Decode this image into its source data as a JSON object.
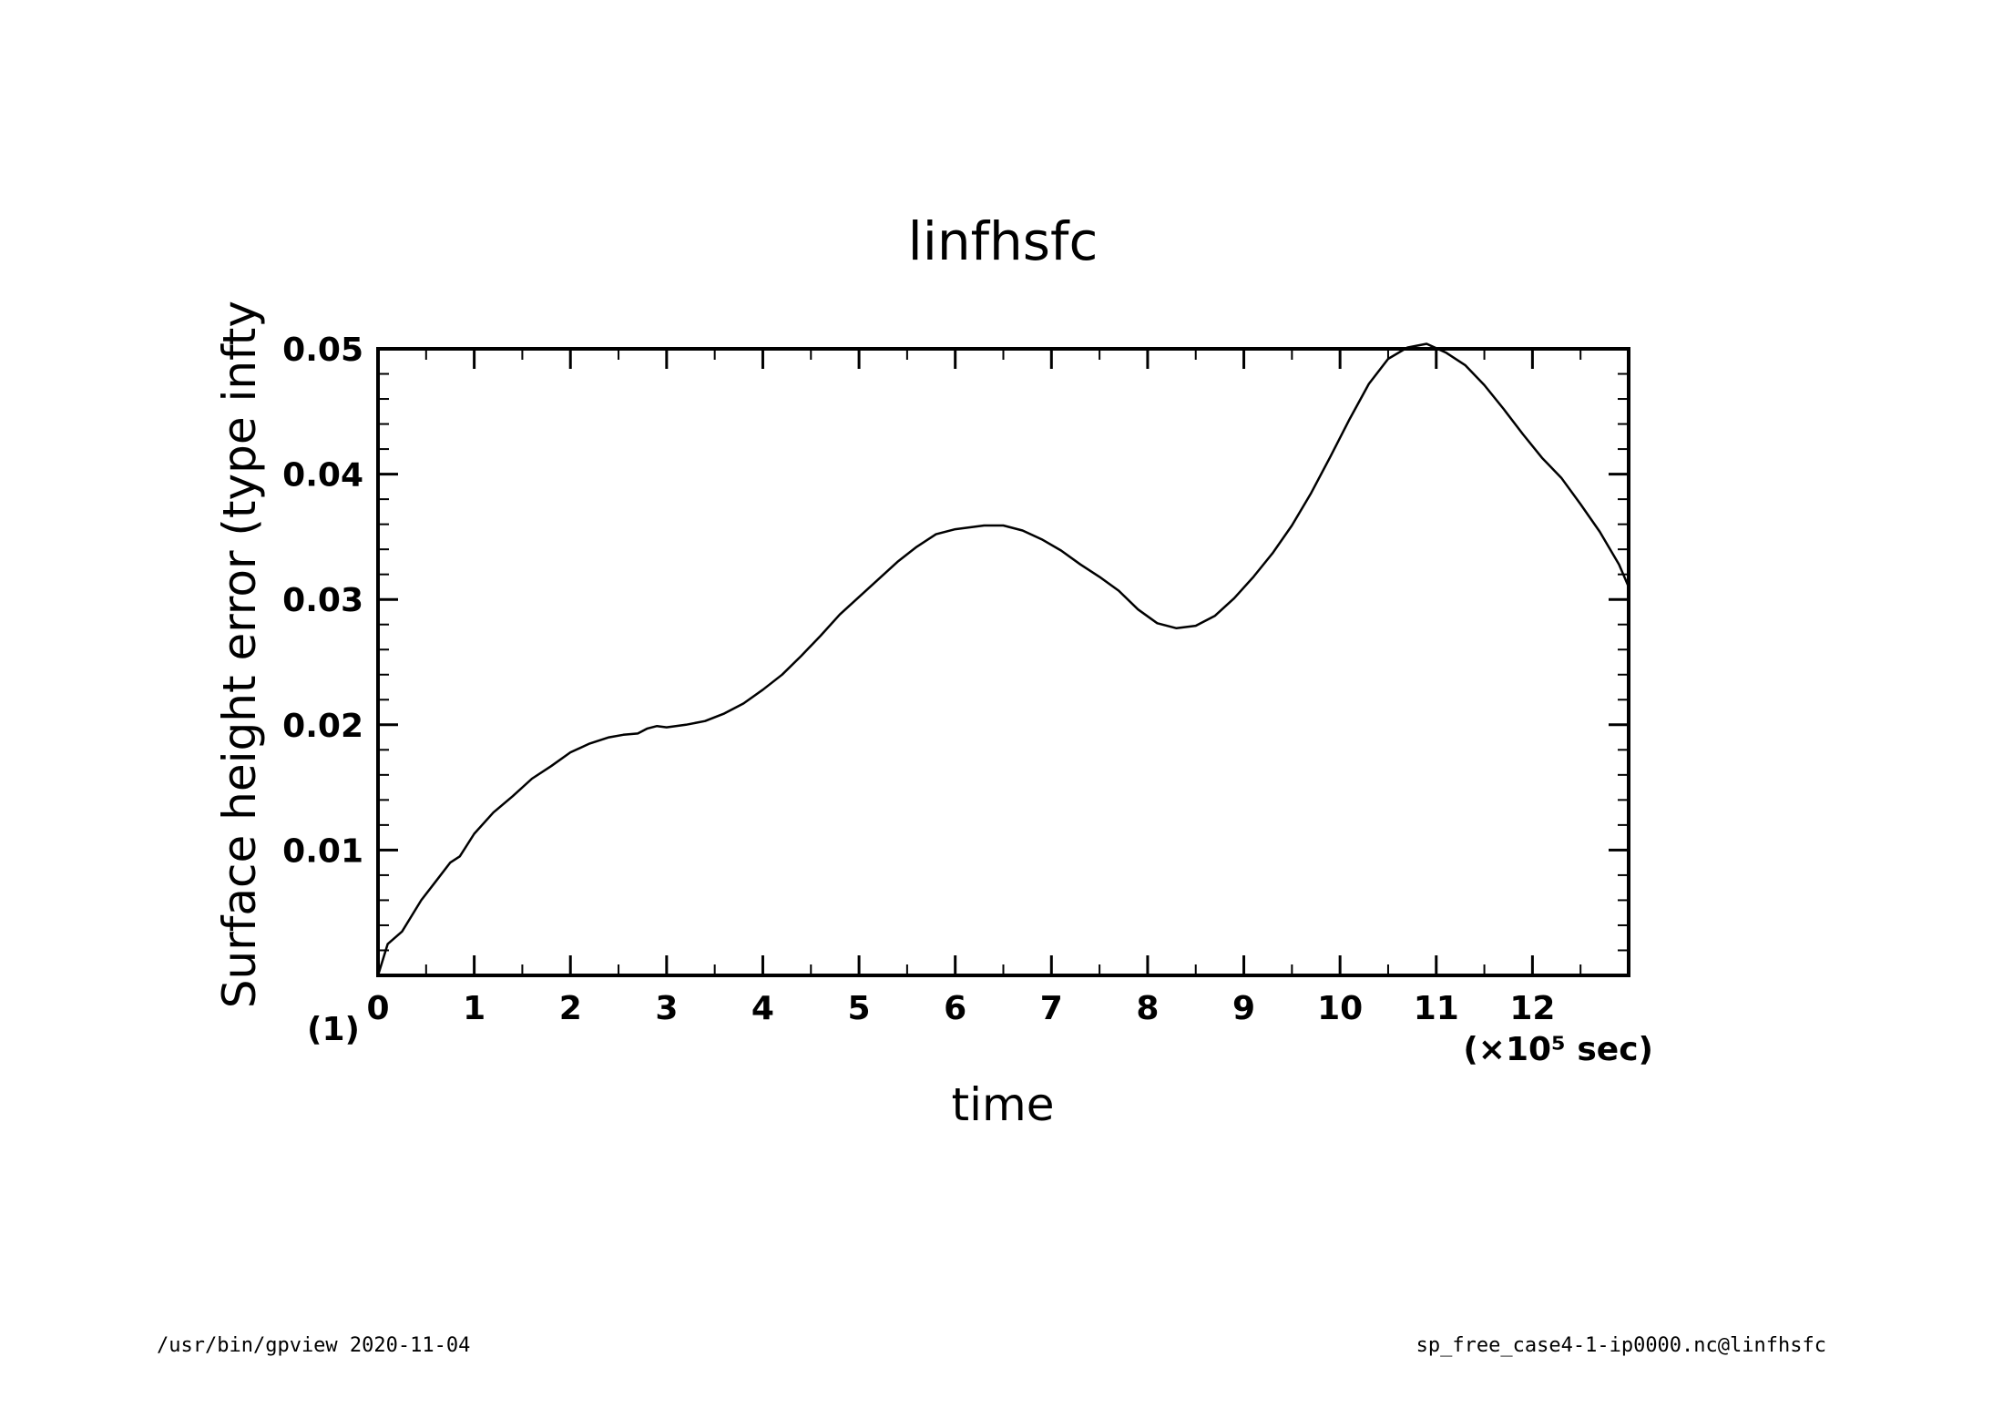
{
  "footer": {
    "left": "/usr/bin/gpview   2020-11-04",
    "right": "sp_free_case4-1-ip0000.nc@linfhsfc"
  },
  "chart_data": {
    "type": "line",
    "title": "linfhsfc",
    "xlabel": "time",
    "ylabel": "Surface height error (type infty",
    "x_unit_label": "(×10⁵ sec)",
    "y_unit_label": "(1)",
    "xlim": [
      0,
      13
    ],
    "ylim": [
      0,
      0.05
    ],
    "x_ticks": [
      0,
      1,
      2,
      3,
      4,
      5,
      6,
      7,
      8,
      9,
      10,
      11,
      12
    ],
    "x_tick_labels": [
      "0",
      "1",
      "2",
      "3",
      "4",
      "5",
      "6",
      "7",
      "8",
      "9",
      "10",
      "11",
      "12"
    ],
    "y_ticks": [
      0.01,
      0.02,
      0.03,
      0.04,
      0.05
    ],
    "y_tick_labels": [
      "0.01",
      "0.02",
      "0.03",
      "0.04",
      "0.05"
    ],
    "grid": false,
    "series": [
      {
        "color": "#000000",
        "x": [
          0,
          0.1,
          0.25,
          0.45,
          0.6,
          0.75,
          0.85,
          1.0,
          1.2,
          1.4,
          1.6,
          1.8,
          2.0,
          2.2,
          2.4,
          2.55,
          2.7,
          2.8,
          2.9,
          3.0,
          3.2,
          3.4,
          3.6,
          3.8,
          4.0,
          4.2,
          4.4,
          4.6,
          4.8,
          5.0,
          5.2,
          5.4,
          5.6,
          5.8,
          6.0,
          6.2,
          6.3,
          6.5,
          6.7,
          6.9,
          7.1,
          7.3,
          7.5,
          7.7,
          7.9,
          8.1,
          8.3,
          8.5,
          8.7,
          8.9,
          9.1,
          9.3,
          9.5,
          9.7,
          9.9,
          10.1,
          10.3,
          10.5,
          10.7,
          10.9,
          11.1,
          11.3,
          11.5,
          11.7,
          11.9,
          12.1,
          12.3,
          12.5,
          12.7,
          12.9,
          13.0
        ],
        "y": [
          0.0,
          0.0025,
          0.0035,
          0.006,
          0.0075,
          0.009,
          0.0095,
          0.0113,
          0.013,
          0.0143,
          0.0157,
          0.0167,
          0.0178,
          0.0185,
          0.019,
          0.0192,
          0.0193,
          0.0197,
          0.0199,
          0.0198,
          0.02,
          0.0203,
          0.0209,
          0.0217,
          0.0228,
          0.024,
          0.0255,
          0.0271,
          0.0288,
          0.0302,
          0.0316,
          0.033,
          0.0342,
          0.0352,
          0.0356,
          0.0358,
          0.0359,
          0.0359,
          0.0355,
          0.0348,
          0.0339,
          0.0328,
          0.0318,
          0.0307,
          0.0292,
          0.0281,
          0.0277,
          0.0279,
          0.0287,
          0.0301,
          0.0318,
          0.0337,
          0.0359,
          0.0385,
          0.0414,
          0.0444,
          0.0472,
          0.0492,
          0.0501,
          0.0504,
          0.0497,
          0.0487,
          0.0471,
          0.0452,
          0.0432,
          0.0413,
          0.0397,
          0.0376,
          0.0354,
          0.0328,
          0.031
        ]
      }
    ]
  }
}
